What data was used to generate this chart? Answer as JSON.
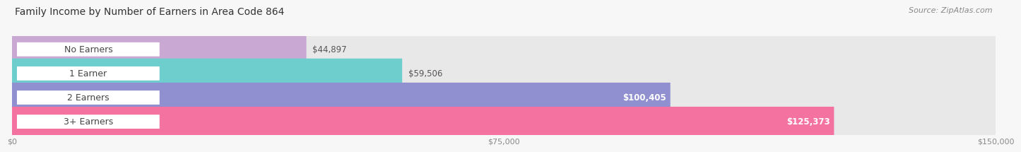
{
  "title": "Family Income by Number of Earners in Area Code 864",
  "source": "Source: ZipAtlas.com",
  "categories": [
    "No Earners",
    "1 Earner",
    "2 Earners",
    "3+ Earners"
  ],
  "values": [
    44897,
    59506,
    100405,
    125373
  ],
  "bar_colors": [
    "#c9a8d4",
    "#6ecece",
    "#9090d0",
    "#f472a0"
  ],
  "value_labels": [
    "$44,897",
    "$59,506",
    "$100,405",
    "$125,373"
  ],
  "value_label_inside": [
    false,
    false,
    true,
    true
  ],
  "xmax": 150000,
  "xticks": [
    0,
    75000,
    150000
  ],
  "xtick_labels": [
    "$0",
    "$75,000",
    "$150,000"
  ],
  "background_color": "#f7f7f7",
  "bar_bg_color": "#e8e8e8",
  "bar_height": 0.62,
  "bar_gap": 1.0,
  "title_fontsize": 10,
  "source_fontsize": 8,
  "label_fontsize": 9,
  "value_fontsize": 8.5
}
